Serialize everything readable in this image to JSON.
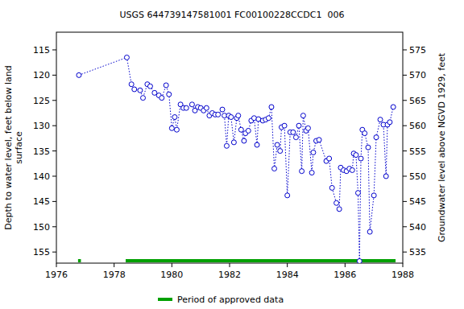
{
  "chart_data": {
    "type": "line",
    "title": "USGS 644739147581001 FC00100228CCDC1  006",
    "y_label": [
      "Depth to water level, feet below land",
      "surface"
    ],
    "y2_label": "Groundwater level above NGVD 1929, feet",
    "x": [
      1976.78,
      1978.44,
      1978.6,
      1978.7,
      1978.9,
      1979.0,
      1979.15,
      1979.25,
      1979.4,
      1979.55,
      1979.65,
      1979.8,
      1979.9,
      1980.0,
      1980.1,
      1980.17,
      1980.3,
      1980.4,
      1980.5,
      1980.7,
      1980.8,
      1980.9,
      1981.0,
      1981.1,
      1981.2,
      1981.3,
      1981.4,
      1981.5,
      1981.6,
      1981.75,
      1981.82,
      1981.9,
      1981.97,
      1982.05,
      1982.15,
      1982.25,
      1982.3,
      1982.4,
      1982.5,
      1982.55,
      1982.65,
      1982.75,
      1982.85,
      1982.95,
      1983.0,
      1983.15,
      1983.25,
      1983.35,
      1983.45,
      1983.55,
      1983.65,
      1983.75,
      1983.8,
      1983.9,
      1984.0,
      1984.1,
      1984.2,
      1984.3,
      1984.4,
      1984.5,
      1984.55,
      1984.65,
      1984.72,
      1984.85,
      1984.9,
      1985.0,
      1985.1,
      1985.35,
      1985.45,
      1985.55,
      1985.7,
      1985.8,
      1985.85,
      1985.95,
      1986.05,
      1986.15,
      1986.25,
      1986.3,
      1986.38,
      1986.45,
      1986.5,
      1986.55,
      1986.6,
      1986.68,
      1986.8,
      1986.86,
      1987.0,
      1987.08,
      1987.22,
      1987.33,
      1987.42,
      1987.47,
      1987.55,
      1987.67
    ],
    "series": [
      {
        "color": "#0000cc",
        "marker": "circle",
        "line_style": "dotted",
        "values": [
          120,
          116.5,
          121.8,
          122.8,
          123,
          124.5,
          121.8,
          122.2,
          123.5,
          124,
          124.5,
          122,
          123.8,
          130.5,
          128.3,
          130.8,
          125.8,
          126.5,
          126.5,
          125.8,
          127,
          126.3,
          126.5,
          127,
          126.5,
          128,
          127.5,
          127.8,
          127.8,
          126.8,
          128,
          134,
          128,
          128.3,
          133.3,
          128.5,
          128,
          130.8,
          133,
          131.5,
          131,
          129,
          128.5,
          133.8,
          128.7,
          129,
          128.8,
          128.5,
          126.3,
          138.5,
          133.8,
          135,
          130.3,
          130,
          143.8,
          131.3,
          131.3,
          132.3,
          130,
          139,
          128,
          131,
          130.5,
          139.3,
          135.3,
          133,
          132.8,
          137,
          136.5,
          142.3,
          145.3,
          146.5,
          138.3,
          138.8,
          139,
          138.5,
          138.8,
          135.5,
          135.8,
          143.3,
          156.8,
          136.5,
          130.8,
          131.5,
          134.3,
          151,
          143.8,
          132.3,
          128.8,
          129.8,
          140,
          129.8,
          129.3,
          126.3
        ]
      }
    ],
    "approved_periods": {
      "name": "Period of approved data",
      "color": "#00a000",
      "ranges": [
        [
          1976.75,
          1976.85
        ],
        [
          1978.4,
          1987.75
        ]
      ]
    },
    "xlim": [
      1976,
      1988
    ],
    "xticks": [
      1976,
      1978,
      1980,
      1982,
      1984,
      1986,
      1988
    ],
    "ylim": [
      111.5,
      157.2
    ],
    "yticks": [
      115,
      120,
      125,
      130,
      135,
      140,
      145,
      150,
      155
    ],
    "y2lim": [
      578.5,
      532.8
    ],
    "y2ticks": [
      575,
      570,
      565,
      560,
      555,
      550,
      545,
      540,
      535
    ],
    "grid": false
  }
}
